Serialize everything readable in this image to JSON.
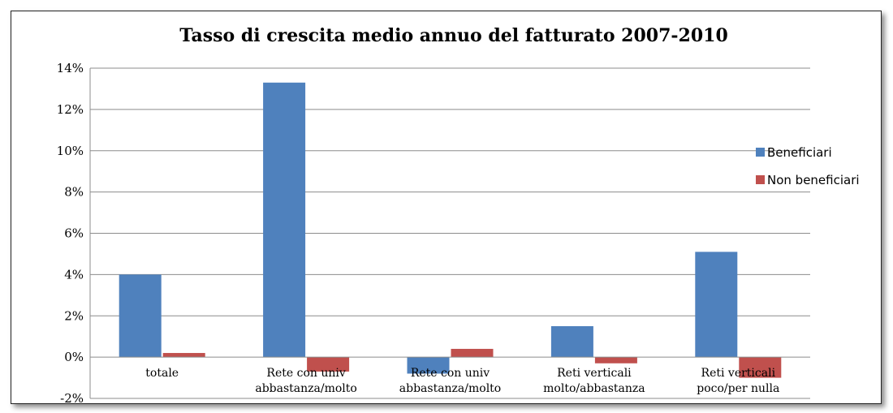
{
  "chart_data": {
    "type": "bar",
    "title": "Tasso di crescita medio annuo del fatturato 2007-2010",
    "categories": [
      [
        "totale"
      ],
      [
        "Rete con univ",
        "abbastanza/molto"
      ],
      [
        "Rete con univ",
        "abbastanza/molto"
      ],
      [
        "Reti verticali",
        "molto/abbastanza"
      ],
      [
        "Reti verticali",
        "poco/per nulla"
      ]
    ],
    "series": [
      {
        "name": "Beneficiari",
        "color": "#4F81BD",
        "values": [
          4.0,
          13.3,
          -0.8,
          1.5,
          5.1
        ]
      },
      {
        "name": "Non beneficiari",
        "color": "#C0504D",
        "values": [
          0.2,
          -0.7,
          0.4,
          -0.3,
          -1.0
        ]
      }
    ],
    "ylim": [
      -2,
      14
    ],
    "yticks": [
      "14%",
      "12%",
      "10%",
      "8%",
      "6%",
      "4%",
      "2%",
      "0%",
      "-2%"
    ],
    "ytick_values": [
      14,
      12,
      10,
      8,
      6,
      4,
      2,
      0,
      -2
    ],
    "grid": true,
    "legend_position": "right"
  }
}
